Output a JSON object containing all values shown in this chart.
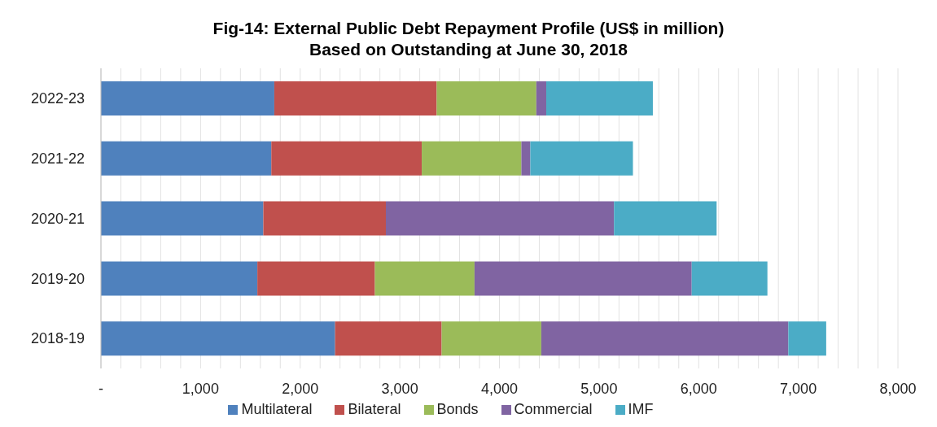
{
  "chart_data": {
    "type": "bar",
    "orientation": "horizontal",
    "stacked": true,
    "title": "Fig-14: External Public Debt Repayment Profile (US$ in million)",
    "subtitle": "Based on Outstanding at June 30, 2018",
    "categories": [
      "2022-23",
      "2021-22",
      "2020-21",
      "2019-20",
      "2018-19"
    ],
    "series": [
      {
        "name": "Multilateral",
        "color": "#4f81bd",
        "values": [
          1740,
          1710,
          1630,
          1570,
          2350
        ]
      },
      {
        "name": "Bilateral",
        "color": "#c0504d",
        "values": [
          1630,
          1510,
          1230,
          1180,
          1070
        ]
      },
      {
        "name": "Bonds",
        "color": "#9bbb59",
        "values": [
          1000,
          1000,
          null,
          1000,
          1000
        ]
      },
      {
        "name": "Commercial",
        "color": "#8064a2",
        "values": [
          100,
          90,
          2290,
          2180,
          2480
        ]
      },
      {
        "name": "IMF",
        "color": "#4bacc6",
        "values": [
          1070,
          1030,
          1030,
          760,
          380
        ]
      }
    ],
    "xlim": [
      0,
      8000
    ],
    "xticks": [
      {
        "value": 0,
        "label": "-"
      },
      {
        "value": 200,
        "label": null
      },
      {
        "value": 400,
        "label": null
      },
      {
        "value": 600,
        "label": null
      },
      {
        "value": 800,
        "label": null
      },
      {
        "value": 1000,
        "label": "1,000"
      },
      {
        "value": 1200,
        "label": null
      },
      {
        "value": 1400,
        "label": null
      },
      {
        "value": 1600,
        "label": null
      },
      {
        "value": 1800,
        "label": null
      },
      {
        "value": 2000,
        "label": "2,000"
      },
      {
        "value": 2200,
        "label": null
      },
      {
        "value": 2400,
        "label": null
      },
      {
        "value": 2600,
        "label": null
      },
      {
        "value": 2800,
        "label": null
      },
      {
        "value": 3000,
        "label": "3,000"
      },
      {
        "value": 3200,
        "label": null
      },
      {
        "value": 3400,
        "label": null
      },
      {
        "value": 3600,
        "label": null
      },
      {
        "value": 3800,
        "label": null
      },
      {
        "value": 4000,
        "label": "4,000"
      },
      {
        "value": 4200,
        "label": null
      },
      {
        "value": 4400,
        "label": null
      },
      {
        "value": 4600,
        "label": null
      },
      {
        "value": 4800,
        "label": null
      },
      {
        "value": 5000,
        "label": "5,000"
      },
      {
        "value": 5200,
        "label": null
      },
      {
        "value": 5400,
        "label": null
      },
      {
        "value": 5600,
        "label": null
      },
      {
        "value": 5800,
        "label": null
      },
      {
        "value": 6000,
        "label": "6,000"
      },
      {
        "value": 6200,
        "label": null
      },
      {
        "value": 6400,
        "label": null
      },
      {
        "value": 6600,
        "label": null
      },
      {
        "value": 6800,
        "label": null
      },
      {
        "value": 7000,
        "label": "7,000"
      },
      {
        "value": 7200,
        "label": null
      },
      {
        "value": 7400,
        "label": null
      },
      {
        "value": 7600,
        "label": null
      },
      {
        "value": 7800,
        "label": null
      },
      {
        "value": 8000,
        "label": "8,000"
      }
    ],
    "grid": "x",
    "legend": "bottom"
  }
}
